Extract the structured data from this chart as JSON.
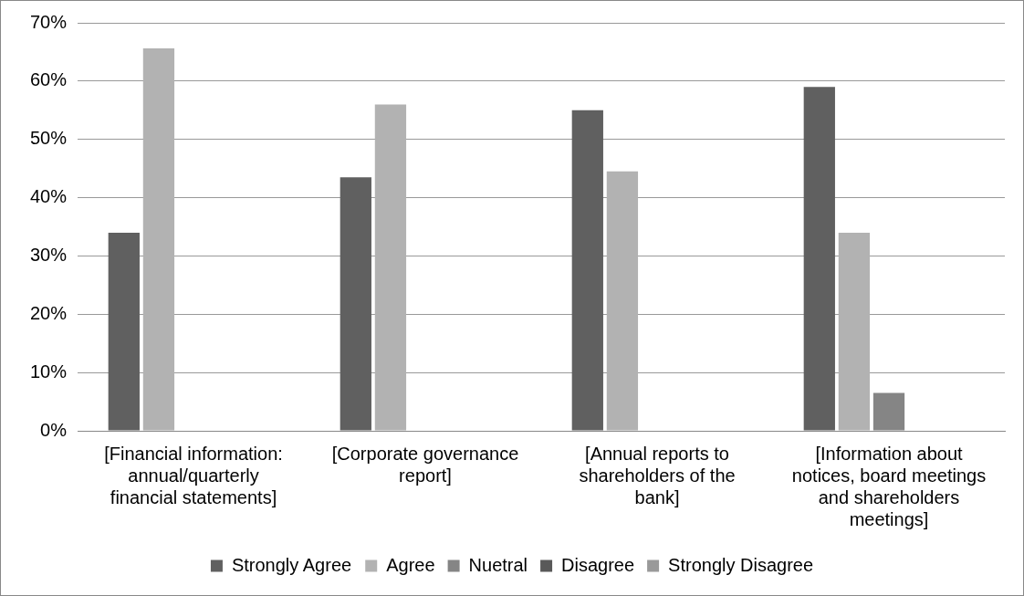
{
  "chart_data": {
    "type": "bar",
    "categories": [
      "[Financial information: annual/quarterly financial statements]",
      "[Corporate governance report]",
      "[Annual reports to shareholders of the bank]",
      "[Information about notices, board meetings and shareholders meetings]"
    ],
    "series": [
      {
        "name": "Strongly Agree",
        "color": "#606060",
        "values": [
          34,
          43.5,
          55,
          59
        ]
      },
      {
        "name": "Agree",
        "color": "#b2b2b2",
        "values": [
          65.6,
          56,
          44.5,
          34
        ]
      },
      {
        "name": "Nuetral",
        "color": "#858585",
        "values": [
          0,
          0,
          0,
          6.5
        ]
      },
      {
        "name": "Disagree",
        "color": "#595959",
        "values": [
          0,
          0,
          0,
          0
        ]
      },
      {
        "name": "Strongly Disagree",
        "color": "#999999",
        "values": [
          0,
          0,
          0,
          0
        ]
      }
    ],
    "ylim": [
      0,
      70
    ],
    "yticks": [
      {
        "value": 0,
        "label": "0%"
      },
      {
        "value": 10,
        "label": "10%"
      },
      {
        "value": 20,
        "label": "20%"
      },
      {
        "value": 30,
        "label": "30%"
      },
      {
        "value": 40,
        "label": "40%"
      },
      {
        "value": 50,
        "label": "50%"
      },
      {
        "value": 60,
        "label": "60%"
      },
      {
        "value": 70,
        "label": "70%"
      }
    ],
    "grid": "y",
    "legend": "bottom"
  }
}
